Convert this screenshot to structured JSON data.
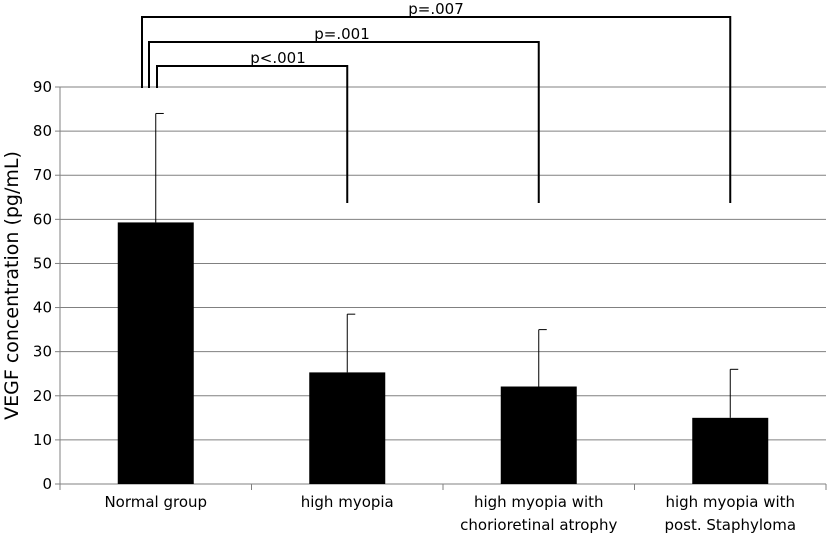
{
  "chart_data": {
    "type": "bar",
    "title": "",
    "xlabel": "",
    "ylabel": "VEGF concentration (pg/mL)",
    "ylim": [
      0,
      90
    ],
    "yticks": [
      0,
      10,
      20,
      30,
      40,
      50,
      60,
      70,
      80,
      90
    ],
    "grid": true,
    "bar_color": "#000000",
    "categories": [
      [
        "Normal group"
      ],
      [
        "high myopia"
      ],
      [
        "high myopia with",
        "chorioretinal atrophy"
      ],
      [
        "high myopia with",
        "post. Staphyloma"
      ]
    ],
    "values": [
      59.3,
      25.3,
      22.1,
      15.0
    ],
    "error_upper": [
      84.0,
      38.5,
      35.0,
      26.0
    ],
    "significance": [
      {
        "label": "p<.001",
        "from": 0,
        "to": 1
      },
      {
        "label": "p=.001",
        "from": 0,
        "to": 2
      },
      {
        "label": "p=.007",
        "from": 0,
        "to": 3
      }
    ]
  }
}
